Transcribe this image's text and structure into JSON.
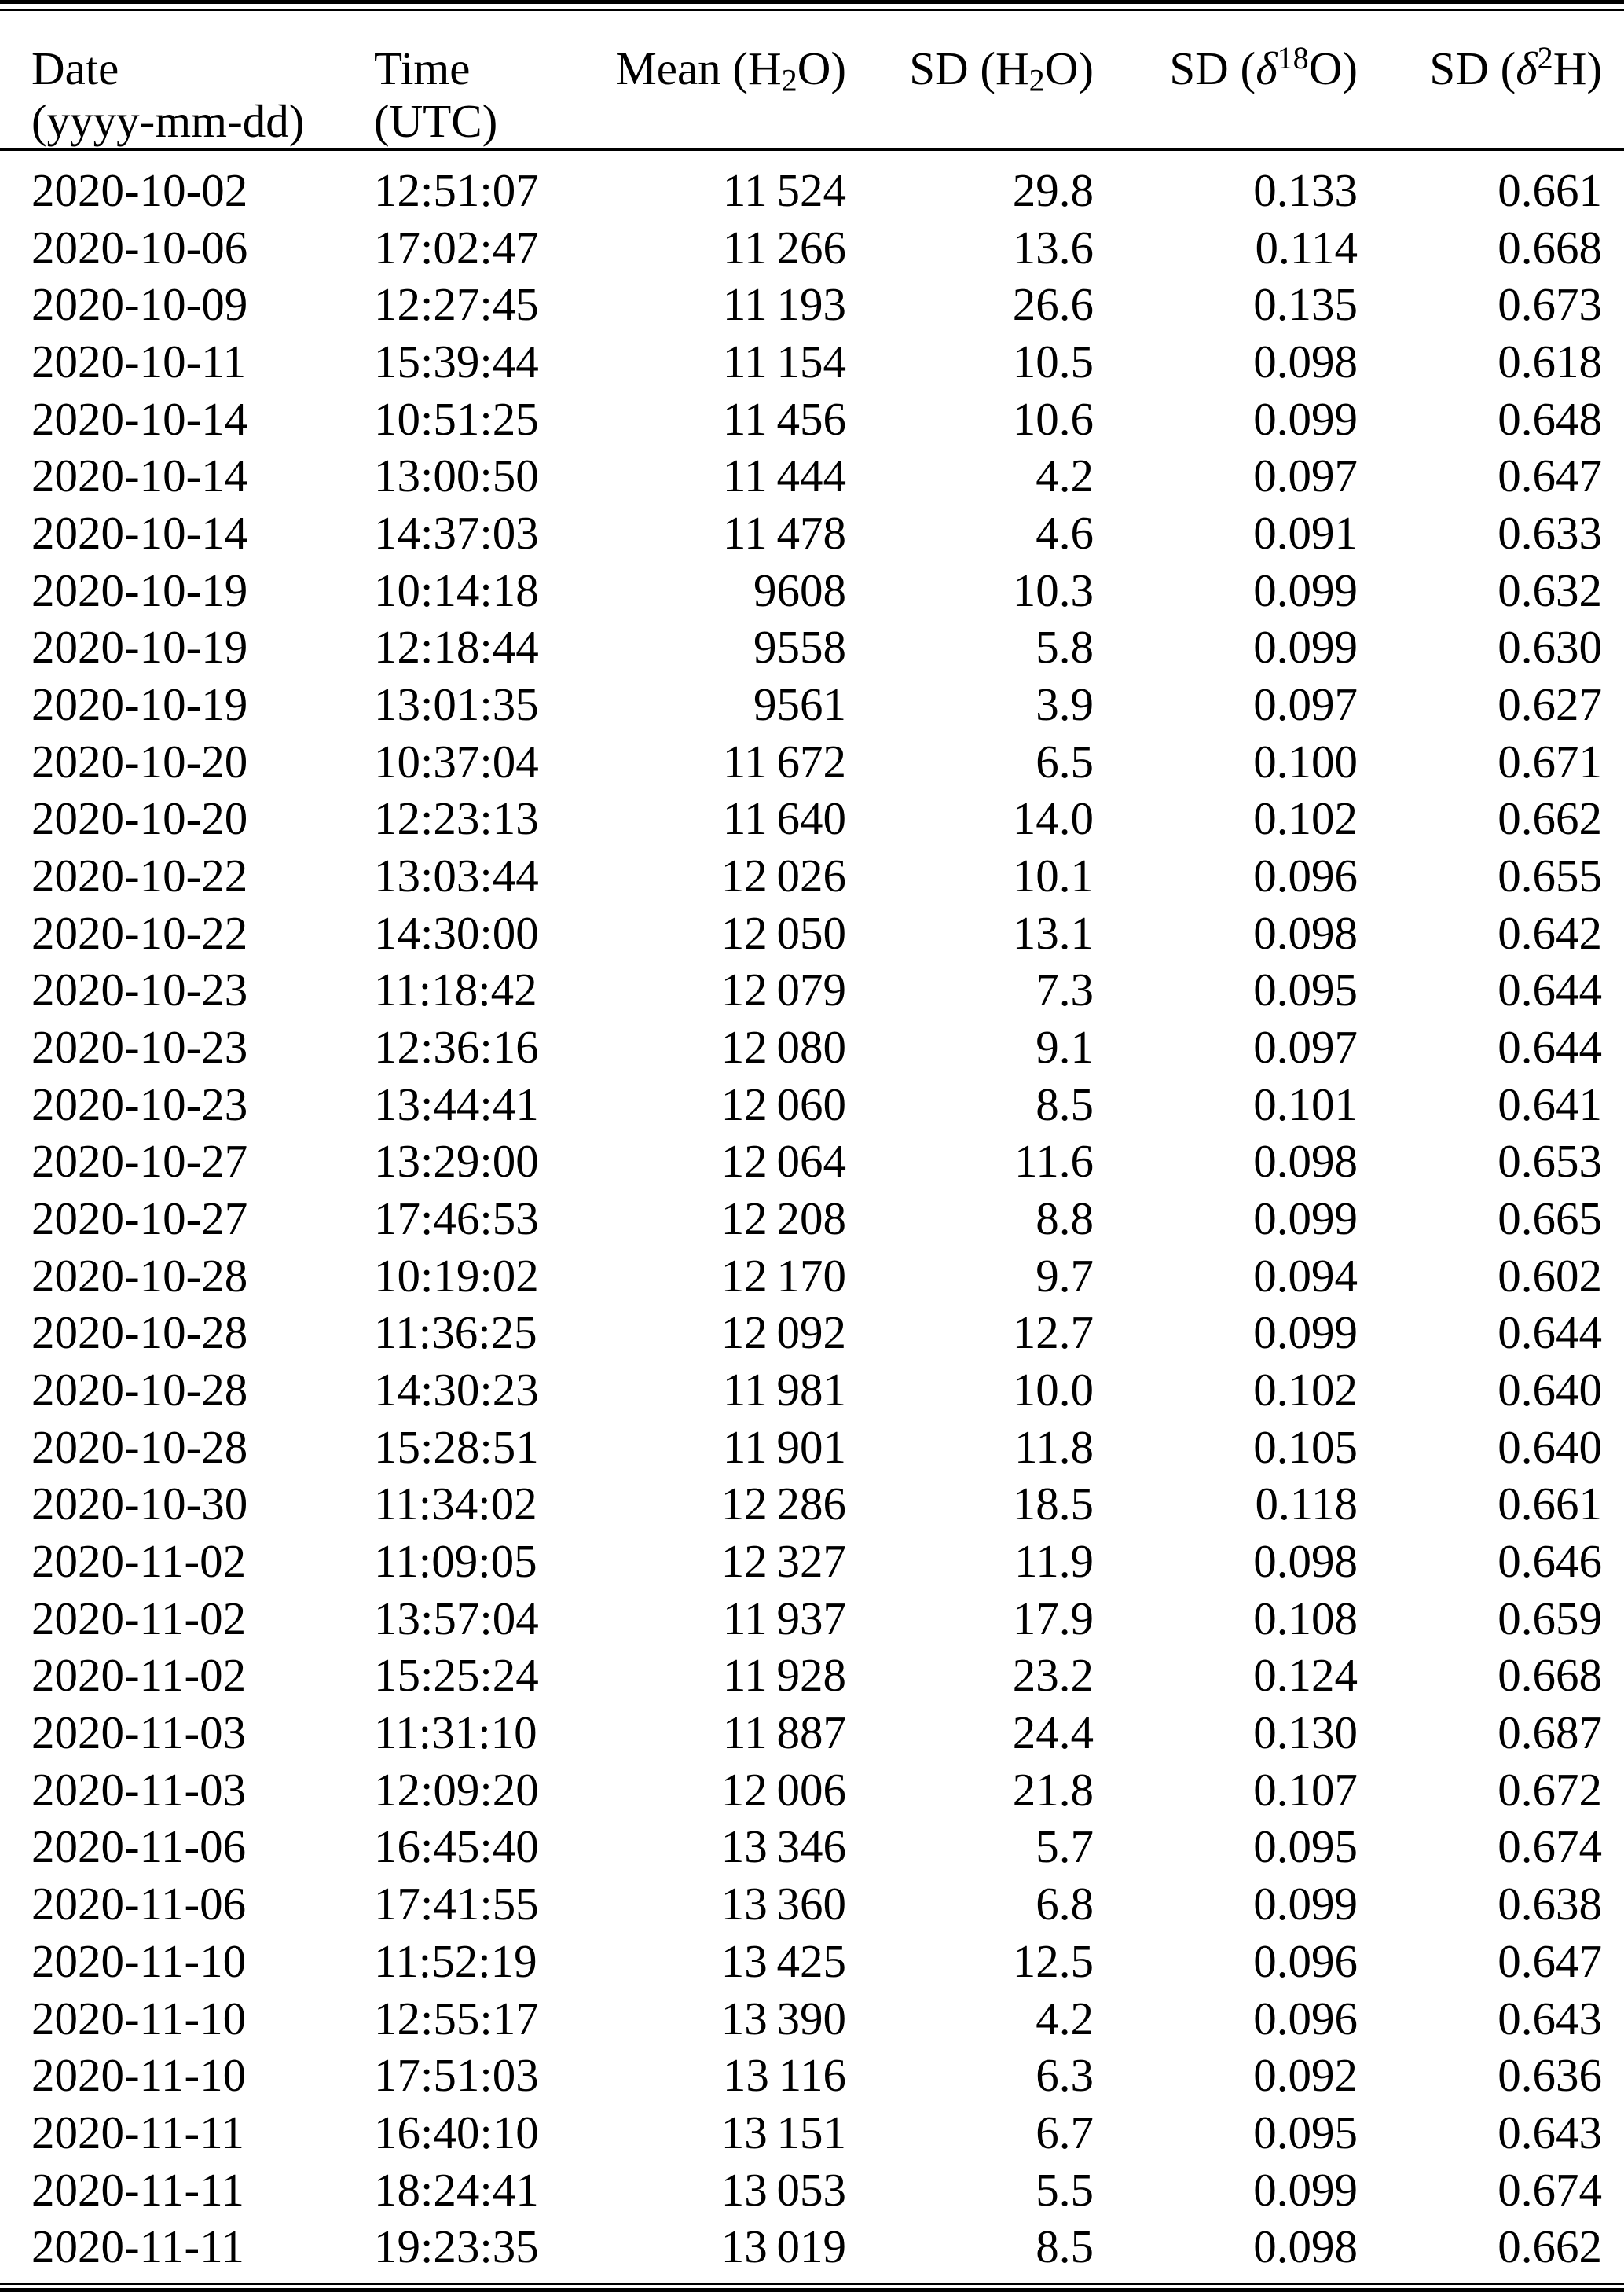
{
  "page": {
    "background": "#ffffff",
    "text_color": "#000000",
    "rule_color": "#000000"
  },
  "table": {
    "columns": [
      {
        "key": "date",
        "align": "left",
        "label_lines": [
          [
            {
              "t": "Date"
            }
          ],
          [
            {
              "t": "(yyyy-mm-dd)"
            }
          ]
        ]
      },
      {
        "key": "time",
        "align": "left",
        "label_lines": [
          [
            {
              "t": "Time"
            }
          ],
          [
            {
              "t": "(UTC)"
            }
          ]
        ]
      },
      {
        "key": "mean_h2o",
        "align": "right",
        "label_lines": [
          [
            {
              "t": "Mean (H"
            },
            {
              "t": "2",
              "sub": true
            },
            {
              "t": "O)"
            }
          ],
          []
        ]
      },
      {
        "key": "sd_h2o",
        "align": "right",
        "label_lines": [
          [
            {
              "t": "SD (H"
            },
            {
              "t": "2",
              "sub": true
            },
            {
              "t": "O)"
            }
          ],
          []
        ]
      },
      {
        "key": "sd_d18o",
        "align": "right",
        "label_lines": [
          [
            {
              "t": "SD ("
            },
            {
              "t": "δ",
              "italic": true
            },
            {
              "t": "18",
              "sup": true
            },
            {
              "t": "O)"
            }
          ],
          []
        ]
      },
      {
        "key": "sd_d2h",
        "align": "right",
        "label_lines": [
          [
            {
              "t": "SD ("
            },
            {
              "t": "δ",
              "italic": true
            },
            {
              "t": "2",
              "sup": true
            },
            {
              "t": "H)"
            }
          ],
          []
        ]
      }
    ],
    "rows": [
      [
        "2020-10-02",
        "12:51:07",
        "11 524",
        "29.8",
        "0.133",
        "0.661"
      ],
      [
        "2020-10-06",
        "17:02:47",
        "11 266",
        "13.6",
        "0.114",
        "0.668"
      ],
      [
        "2020-10-09",
        "12:27:45",
        "11 193",
        "26.6",
        "0.135",
        "0.673"
      ],
      [
        "2020-10-11",
        "15:39:44",
        "11 154",
        "10.5",
        "0.098",
        "0.618"
      ],
      [
        "2020-10-14",
        "10:51:25",
        "11 456",
        "10.6",
        "0.099",
        "0.648"
      ],
      [
        "2020-10-14",
        "13:00:50",
        "11 444",
        "4.2",
        "0.097",
        "0.647"
      ],
      [
        "2020-10-14",
        "14:37:03",
        "11 478",
        "4.6",
        "0.091",
        "0.633"
      ],
      [
        "2020-10-19",
        "10:14:18",
        "9608",
        "10.3",
        "0.099",
        "0.632"
      ],
      [
        "2020-10-19",
        "12:18:44",
        "9558",
        "5.8",
        "0.099",
        "0.630"
      ],
      [
        "2020-10-19",
        "13:01:35",
        "9561",
        "3.9",
        "0.097",
        "0.627"
      ],
      [
        "2020-10-20",
        "10:37:04",
        "11 672",
        "6.5",
        "0.100",
        "0.671"
      ],
      [
        "2020-10-20",
        "12:23:13",
        "11 640",
        "14.0",
        "0.102",
        "0.662"
      ],
      [
        "2020-10-22",
        "13:03:44",
        "12 026",
        "10.1",
        "0.096",
        "0.655"
      ],
      [
        "2020-10-22",
        "14:30:00",
        "12 050",
        "13.1",
        "0.098",
        "0.642"
      ],
      [
        "2020-10-23",
        "11:18:42",
        "12 079",
        "7.3",
        "0.095",
        "0.644"
      ],
      [
        "2020-10-23",
        "12:36:16",
        "12 080",
        "9.1",
        "0.097",
        "0.644"
      ],
      [
        "2020-10-23",
        "13:44:41",
        "12 060",
        "8.5",
        "0.101",
        "0.641"
      ],
      [
        "2020-10-27",
        "13:29:00",
        "12 064",
        "11.6",
        "0.098",
        "0.653"
      ],
      [
        "2020-10-27",
        "17:46:53",
        "12 208",
        "8.8",
        "0.099",
        "0.665"
      ],
      [
        "2020-10-28",
        "10:19:02",
        "12 170",
        "9.7",
        "0.094",
        "0.602"
      ],
      [
        "2020-10-28",
        "11:36:25",
        "12 092",
        "12.7",
        "0.099",
        "0.644"
      ],
      [
        "2020-10-28",
        "14:30:23",
        "11 981",
        "10.0",
        "0.102",
        "0.640"
      ],
      [
        "2020-10-28",
        "15:28:51",
        "11 901",
        "11.8",
        "0.105",
        "0.640"
      ],
      [
        "2020-10-30",
        "11:34:02",
        "12 286",
        "18.5",
        "0.118",
        "0.661"
      ],
      [
        "2020-11-02",
        "11:09:05",
        "12 327",
        "11.9",
        "0.098",
        "0.646"
      ],
      [
        "2020-11-02",
        "13:57:04",
        "11 937",
        "17.9",
        "0.108",
        "0.659"
      ],
      [
        "2020-11-02",
        "15:25:24",
        "11 928",
        "23.2",
        "0.124",
        "0.668"
      ],
      [
        "2020-11-03",
        "11:31:10",
        "11 887",
        "24.4",
        "0.130",
        "0.687"
      ],
      [
        "2020-11-03",
        "12:09:20",
        "12 006",
        "21.8",
        "0.107",
        "0.672"
      ],
      [
        "2020-11-06",
        "16:45:40",
        "13 346",
        "5.7",
        "0.095",
        "0.674"
      ],
      [
        "2020-11-06",
        "17:41:55",
        "13 360",
        "6.8",
        "0.099",
        "0.638"
      ],
      [
        "2020-11-10",
        "11:52:19",
        "13 425",
        "12.5",
        "0.096",
        "0.647"
      ],
      [
        "2020-11-10",
        "12:55:17",
        "13 390",
        "4.2",
        "0.096",
        "0.643"
      ],
      [
        "2020-11-10",
        "17:51:03",
        "13 116",
        "6.3",
        "0.092",
        "0.636"
      ],
      [
        "2020-11-11",
        "16:40:10",
        "13 151",
        "6.7",
        "0.095",
        "0.643"
      ],
      [
        "2020-11-11",
        "18:24:41",
        "13 053",
        "5.5",
        "0.099",
        "0.674"
      ],
      [
        "2020-11-11",
        "19:23:35",
        "13 019",
        "8.5",
        "0.098",
        "0.662"
      ]
    ]
  }
}
